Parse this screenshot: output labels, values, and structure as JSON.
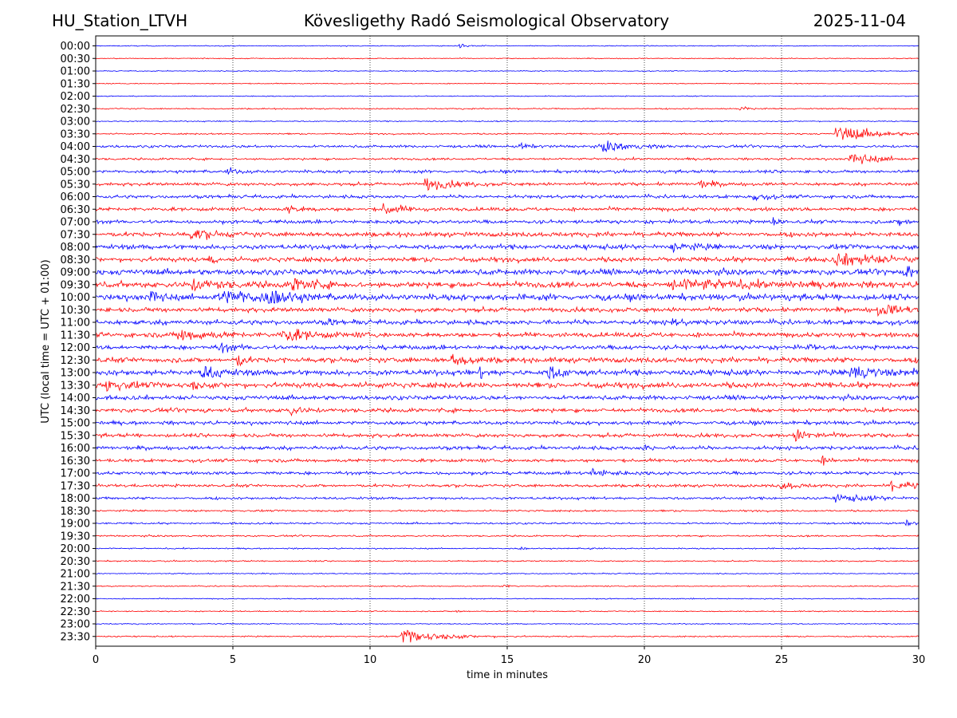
{
  "header": {
    "station": "HU_Station_LTVH",
    "observatory": "Kövesligethy Radó Seismological Observatory",
    "date": "2025-11-04"
  },
  "chart_data": {
    "type": "line",
    "title": "Kövesligethy Radó Seismological Observatory",
    "xlabel": "time in minutes",
    "ylabel": "UTC (local time = UTC + 01:00)",
    "xlim": [
      0,
      30
    ],
    "xticks": [
      0,
      5,
      10,
      15,
      20,
      25,
      30
    ],
    "grid": "vertical dotted lines at 5-minute ticks",
    "colors": {
      "even_rows": "#0000ff",
      "odd_rows": "#ff0000",
      "axis": "#000000"
    },
    "rows": [
      "00:00",
      "00:30",
      "01:00",
      "01:30",
      "02:00",
      "02:30",
      "03:00",
      "03:30",
      "04:00",
      "04:30",
      "05:00",
      "05:30",
      "06:00",
      "06:30",
      "07:00",
      "07:30",
      "08:00",
      "08:30",
      "09:00",
      "09:30",
      "10:00",
      "10:30",
      "11:00",
      "11:30",
      "12:00",
      "12:30",
      "13:00",
      "13:30",
      "14:00",
      "14:30",
      "15:00",
      "15:30",
      "16:00",
      "16:30",
      "17:00",
      "17:30",
      "18:00",
      "18:30",
      "19:00",
      "19:30",
      "20:00",
      "20:30",
      "21:00",
      "21:30",
      "22:00",
      "22:30",
      "23:00",
      "23:30"
    ],
    "noise_amplitude": [
      0.5,
      0.5,
      0.5,
      0.5,
      0.5,
      0.7,
      0.6,
      0.8,
      1.4,
      1.2,
      1.6,
      1.7,
      1.8,
      2.0,
      2.0,
      2.5,
      2.6,
      2.6,
      3.0,
      3.2,
      3.3,
      2.4,
      2.6,
      2.6,
      2.4,
      2.8,
      3.0,
      3.0,
      2.3,
      2.2,
      2.0,
      2.0,
      2.0,
      1.8,
      1.8,
      1.6,
      1.4,
      1.0,
      1.0,
      0.9,
      0.7,
      0.7,
      0.6,
      0.6,
      0.6,
      0.6,
      0.6,
      0.7
    ],
    "events": [
      {
        "row": 0,
        "minute": 13.3,
        "amp": 3,
        "dur": 0.6
      },
      {
        "row": 5,
        "minute": 23.5,
        "amp": 3,
        "dur": 0.8
      },
      {
        "row": 7,
        "minute": 27.0,
        "amp": 11,
        "dur": 2.5
      },
      {
        "row": 8,
        "minute": 18.5,
        "amp": 6,
        "dur": 2.0
      },
      {
        "row": 8,
        "minute": 15.5,
        "amp": 3,
        "dur": 1.0
      },
      {
        "row": 9,
        "minute": 27.5,
        "amp": 8,
        "dur": 1.8
      },
      {
        "row": 10,
        "minute": 4.8,
        "amp": 4,
        "dur": 0.8
      },
      {
        "row": 11,
        "minute": 12.0,
        "amp": 7,
        "dur": 2.0
      },
      {
        "row": 11,
        "minute": 22.0,
        "amp": 4,
        "dur": 1.0
      },
      {
        "row": 12,
        "minute": 24.0,
        "amp": 4,
        "dur": 1.0
      },
      {
        "row": 13,
        "minute": 10.5,
        "amp": 7,
        "dur": 1.2
      },
      {
        "row": 13,
        "minute": 7.0,
        "amp": 4,
        "dur": 1.0
      },
      {
        "row": 14,
        "minute": 24.7,
        "amp": 8,
        "dur": 0.3
      },
      {
        "row": 14,
        "minute": 29.3,
        "amp": 5,
        "dur": 0.6
      },
      {
        "row": 15,
        "minute": 3.5,
        "amp": 6,
        "dur": 1.5
      },
      {
        "row": 16,
        "minute": 21.0,
        "amp": 5,
        "dur": 1.5
      },
      {
        "row": 17,
        "minute": 4.2,
        "amp": 13,
        "dur": 0.2
      },
      {
        "row": 17,
        "minute": 27.0,
        "amp": 8,
        "dur": 3.0
      },
      {
        "row": 18,
        "minute": 29.6,
        "amp": 10,
        "dur": 0.8
      },
      {
        "row": 19,
        "minute": 7.2,
        "amp": 11,
        "dur": 1.2
      },
      {
        "row": 19,
        "minute": 3.5,
        "amp": 6,
        "dur": 2.0
      },
      {
        "row": 19,
        "minute": 21.0,
        "amp": 6,
        "dur": 5.0
      },
      {
        "row": 20,
        "minute": 2.0,
        "amp": 12,
        "dur": 0.5
      },
      {
        "row": 20,
        "minute": 4.5,
        "amp": 9,
        "dur": 3.0
      },
      {
        "row": 20,
        "minute": 6.3,
        "amp": 11,
        "dur": 1.2
      },
      {
        "row": 21,
        "minute": 28.5,
        "amp": 6,
        "dur": 2.5
      },
      {
        "row": 22,
        "minute": 8.5,
        "amp": 4,
        "dur": 0.3
      },
      {
        "row": 22,
        "minute": 21.0,
        "amp": 4,
        "dur": 0.6
      },
      {
        "row": 23,
        "minute": 3.0,
        "amp": 7,
        "dur": 2.0
      },
      {
        "row": 23,
        "minute": 6.8,
        "amp": 8,
        "dur": 2.0
      },
      {
        "row": 24,
        "minute": 4.5,
        "amp": 5,
        "dur": 1.0
      },
      {
        "row": 24,
        "minute": 26.0,
        "amp": 4,
        "dur": 0.3
      },
      {
        "row": 25,
        "minute": 5.2,
        "amp": 9,
        "dur": 0.4
      },
      {
        "row": 25,
        "minute": 13.0,
        "amp": 6,
        "dur": 1.5
      },
      {
        "row": 26,
        "minute": 3.9,
        "amp": 9,
        "dur": 1.2
      },
      {
        "row": 26,
        "minute": 14.0,
        "amp": 8,
        "dur": 0.3
      },
      {
        "row": 26,
        "minute": 16.5,
        "amp": 9,
        "dur": 1.0
      },
      {
        "row": 26,
        "minute": 27.5,
        "amp": 10,
        "dur": 1.5
      },
      {
        "row": 26,
        "minute": 29.8,
        "amp": 8,
        "dur": 0.5
      },
      {
        "row": 27,
        "minute": 0.4,
        "amp": 9,
        "dur": 1.0
      },
      {
        "row": 27,
        "minute": 3.5,
        "amp": 6,
        "dur": 0.4
      },
      {
        "row": 29,
        "minute": 7.0,
        "amp": 6,
        "dur": 0.8
      },
      {
        "row": 31,
        "minute": 25.5,
        "amp": 7,
        "dur": 1.5
      },
      {
        "row": 32,
        "minute": 20.0,
        "amp": 4,
        "dur": 0.4
      },
      {
        "row": 33,
        "minute": 26.5,
        "amp": 4,
        "dur": 0.8
      },
      {
        "row": 34,
        "minute": 18.0,
        "amp": 5,
        "dur": 1.5
      },
      {
        "row": 35,
        "minute": 29.0,
        "amp": 7,
        "dur": 1.5
      },
      {
        "row": 35,
        "minute": 25.0,
        "amp": 4,
        "dur": 1.2
      },
      {
        "row": 36,
        "minute": 27.0,
        "amp": 4,
        "dur": 3.0
      },
      {
        "row": 38,
        "minute": 29.5,
        "amp": 4,
        "dur": 0.6
      },
      {
        "row": 40,
        "minute": 18.0,
        "amp": 2,
        "dur": 0.4
      },
      {
        "row": 40,
        "minute": 15.5,
        "amp": 2,
        "dur": 0.3
      },
      {
        "row": 43,
        "minute": 14.8,
        "amp": 2,
        "dur": 0.6
      },
      {
        "row": 45,
        "minute": 13.0,
        "amp": 2,
        "dur": 0.8
      },
      {
        "row": 47,
        "minute": 11.2,
        "amp": 10,
        "dur": 2.5
      }
    ]
  }
}
